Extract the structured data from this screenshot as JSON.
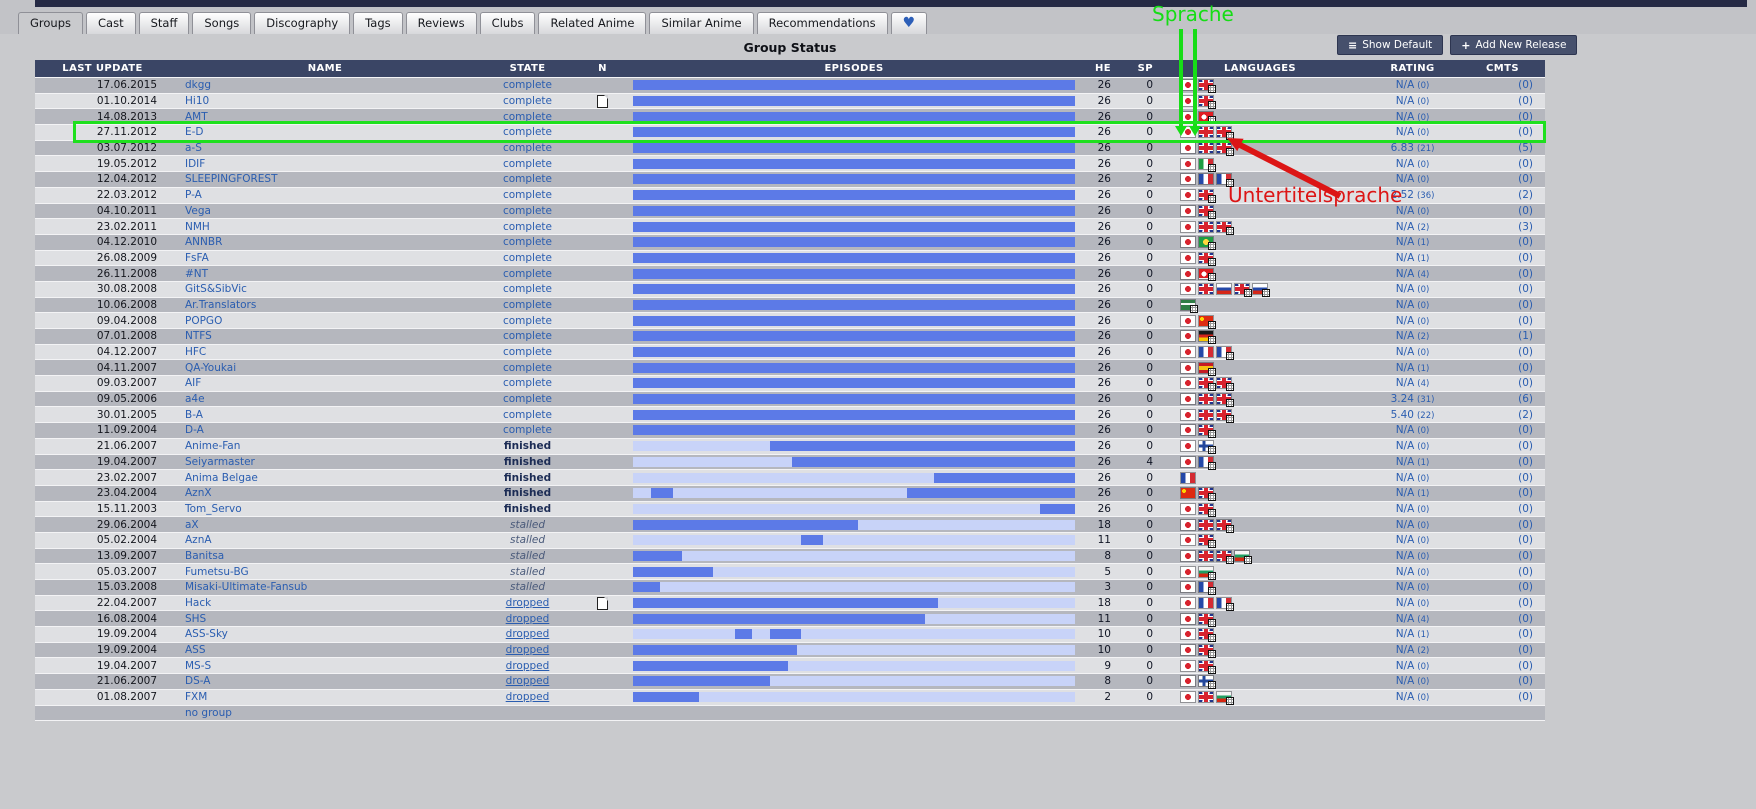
{
  "title": "Group Status",
  "tabs": [
    {
      "label": "Groups",
      "active": true
    },
    {
      "label": "Cast",
      "active": false
    },
    {
      "label": "Staff",
      "active": false
    },
    {
      "label": "Songs",
      "active": false
    },
    {
      "label": "Discography",
      "active": false
    },
    {
      "label": "Tags",
      "active": false
    },
    {
      "label": "Reviews",
      "active": false
    },
    {
      "label": "Clubs",
      "active": false
    },
    {
      "label": "Related Anime",
      "active": false
    },
    {
      "label": "Similar Anime",
      "active": false
    },
    {
      "label": "Recommendations",
      "active": false
    },
    {
      "label": "",
      "active": false,
      "icon": "heart"
    }
  ],
  "toolbar": {
    "show_default": "Show Default",
    "add_new_release": "Add New Release"
  },
  "columns": [
    "LAST UPDATE",
    "NAME",
    "STATE",
    "N",
    "EPISODES",
    "HE",
    "SP",
    "LANGUAGES",
    "RATING",
    "CMTS"
  ],
  "rows": [
    {
      "date": "17.06.2015",
      "name": "dkgg",
      "state": "complete",
      "note": false,
      "he": "26",
      "sp": "0",
      "flags": [
        "jp",
        "uk+b"
      ],
      "rating": "N/A",
      "votes": "(0)",
      "cmts": "(0)",
      "bar": {
        "base": "dark",
        "segs": []
      }
    },
    {
      "date": "01.10.2014",
      "name": "Hi10",
      "state": "complete",
      "note": true,
      "he": "26",
      "sp": "0",
      "flags": [
        "jp",
        "uk+b"
      ],
      "rating": "N/A",
      "votes": "(0)",
      "cmts": "(0)",
      "bar": {
        "base": "dark",
        "segs": []
      }
    },
    {
      "date": "14.08.2013",
      "name": "AMT",
      "state": "complete",
      "note": false,
      "he": "26",
      "sp": "0",
      "flags": [
        "jp",
        "tr+b"
      ],
      "rating": "N/A",
      "votes": "(0)",
      "cmts": "(0)",
      "bar": {
        "base": "dark",
        "segs": []
      }
    },
    {
      "date": "27.11.2012",
      "name": "E-D",
      "state": "complete",
      "note": false,
      "he": "26",
      "sp": "0",
      "flags": [
        "jp",
        "uk",
        "uk+b"
      ],
      "rating": "N/A",
      "votes": "(0)",
      "cmts": "(0)",
      "bar": {
        "base": "dark",
        "segs": []
      },
      "highlighted": true
    },
    {
      "date": "03.07.2012",
      "name": "a-S",
      "state": "complete",
      "note": false,
      "he": "26",
      "sp": "0",
      "flags": [
        "jp",
        "uk",
        "uk+b"
      ],
      "rating": "6.83",
      "votes": "(21)",
      "cmts": "(5)",
      "bar": {
        "base": "dark",
        "segs": []
      }
    },
    {
      "date": "19.05.2012",
      "name": "IDIF",
      "state": "complete",
      "note": false,
      "he": "26",
      "sp": "0",
      "flags": [
        "jp",
        "it+b"
      ],
      "rating": "N/A",
      "votes": "(0)",
      "cmts": "(0)",
      "bar": {
        "base": "dark",
        "segs": []
      }
    },
    {
      "date": "12.04.2012",
      "name": "SLEEPINGFOREST",
      "state": "complete",
      "note": false,
      "he": "26",
      "sp": "2",
      "flags": [
        "jp",
        "fr",
        "fr+b"
      ],
      "rating": "N/A",
      "votes": "(0)",
      "cmts": "(0)",
      "bar": {
        "base": "dark",
        "segs": []
      }
    },
    {
      "date": "22.03.2012",
      "name": "P-A",
      "state": "complete",
      "note": false,
      "he": "26",
      "sp": "0",
      "flags": [
        "jp",
        "uk+b"
      ],
      "rating": "2.52",
      "votes": "(36)",
      "cmts": "(2)",
      "bar": {
        "base": "dark",
        "segs": []
      }
    },
    {
      "date": "04.10.2011",
      "name": "Vega",
      "state": "complete",
      "note": false,
      "he": "26",
      "sp": "0",
      "flags": [
        "jp",
        "uk+b"
      ],
      "rating": "N/A",
      "votes": "(0)",
      "cmts": "(0)",
      "bar": {
        "base": "dark",
        "segs": []
      }
    },
    {
      "date": "23.02.2011",
      "name": "NMH",
      "state": "complete",
      "note": false,
      "he": "26",
      "sp": "0",
      "flags": [
        "jp",
        "uk",
        "uk+b"
      ],
      "rating": "N/A",
      "votes": "(2)",
      "cmts": "(3)",
      "bar": {
        "base": "dark",
        "segs": []
      }
    },
    {
      "date": "04.12.2010",
      "name": "ANNBR",
      "state": "complete",
      "note": false,
      "he": "26",
      "sp": "0",
      "flags": [
        "jp",
        "br+b"
      ],
      "rating": "N/A",
      "votes": "(1)",
      "cmts": "(0)",
      "bar": {
        "base": "dark",
        "segs": []
      }
    },
    {
      "date": "26.08.2009",
      "name": "FsFA",
      "state": "complete",
      "note": false,
      "he": "26",
      "sp": "0",
      "flags": [
        "jp",
        "uk+b"
      ],
      "rating": "N/A",
      "votes": "(1)",
      "cmts": "(0)",
      "bar": {
        "base": "dark",
        "segs": []
      }
    },
    {
      "date": "26.11.2008",
      "name": "#NT",
      "state": "complete",
      "note": false,
      "he": "26",
      "sp": "0",
      "flags": [
        "jp",
        "tr+b"
      ],
      "rating": "N/A",
      "votes": "(4)",
      "cmts": "(0)",
      "bar": {
        "base": "dark",
        "segs": []
      }
    },
    {
      "date": "30.08.2008",
      "name": "GitS&SibVic",
      "state": "complete",
      "note": false,
      "he": "26",
      "sp": "0",
      "flags": [
        "jp",
        "uk",
        "ru",
        "uk+b",
        "ru+b"
      ],
      "rating": "N/A",
      "votes": "(0)",
      "cmts": "(0)",
      "bar": {
        "base": "dark",
        "segs": []
      }
    },
    {
      "date": "10.06.2008",
      "name": "Ar.Translators",
      "state": "complete",
      "note": false,
      "he": "26",
      "sp": "0",
      "flags": [
        "sa+b"
      ],
      "rating": "N/A",
      "votes": "(0)",
      "cmts": "(0)",
      "bar": {
        "base": "dark",
        "segs": []
      }
    },
    {
      "date": "09.04.2008",
      "name": "POPGO",
      "state": "complete",
      "note": false,
      "he": "26",
      "sp": "0",
      "flags": [
        "jp",
        "cn+b"
      ],
      "rating": "N/A",
      "votes": "(0)",
      "cmts": "(0)",
      "bar": {
        "base": "dark",
        "segs": []
      }
    },
    {
      "date": "07.01.2008",
      "name": "NTFS",
      "state": "complete",
      "note": false,
      "he": "26",
      "sp": "0",
      "flags": [
        "jp",
        "de+b"
      ],
      "rating": "N/A",
      "votes": "(2)",
      "cmts": "(1)",
      "bar": {
        "base": "dark",
        "segs": []
      }
    },
    {
      "date": "04.12.2007",
      "name": "HFC",
      "state": "complete",
      "note": false,
      "he": "26",
      "sp": "0",
      "flags": [
        "jp",
        "fr",
        "fr+b"
      ],
      "rating": "N/A",
      "votes": "(0)",
      "cmts": "(0)",
      "bar": {
        "base": "dark",
        "segs": []
      }
    },
    {
      "date": "04.11.2007",
      "name": "QA-Youkai",
      "state": "complete",
      "note": false,
      "he": "26",
      "sp": "0",
      "flags": [
        "jp",
        "es+b"
      ],
      "rating": "N/A",
      "votes": "(1)",
      "cmts": "(0)",
      "bar": {
        "base": "dark",
        "segs": []
      }
    },
    {
      "date": "09.03.2007",
      "name": "AIF",
      "state": "complete",
      "note": false,
      "he": "26",
      "sp": "0",
      "flags": [
        "jp",
        "uk+b",
        "uk+b"
      ],
      "rating": "N/A",
      "votes": "(4)",
      "cmts": "(0)",
      "bar": {
        "base": "dark",
        "segs": []
      }
    },
    {
      "date": "09.05.2006",
      "name": "a4e",
      "state": "complete",
      "note": false,
      "he": "26",
      "sp": "0",
      "flags": [
        "jp",
        "uk",
        "uk+b"
      ],
      "rating": "3.24",
      "votes": "(31)",
      "cmts": "(6)",
      "bar": {
        "base": "dark",
        "segs": []
      }
    },
    {
      "date": "30.01.2005",
      "name": "B-A",
      "state": "complete",
      "note": false,
      "he": "26",
      "sp": "0",
      "flags": [
        "jp",
        "uk",
        "uk+b"
      ],
      "rating": "5.40",
      "votes": "(22)",
      "cmts": "(2)",
      "bar": {
        "base": "dark",
        "segs": []
      }
    },
    {
      "date": "11.09.2004",
      "name": "D-A",
      "state": "complete",
      "note": false,
      "he": "26",
      "sp": "0",
      "flags": [
        "jp",
        "uk+b"
      ],
      "rating": "N/A",
      "votes": "(0)",
      "cmts": "(0)",
      "bar": {
        "base": "dark",
        "segs": []
      }
    },
    {
      "date": "21.06.2007",
      "name": "Anime-Fan",
      "state": "finished",
      "note": false,
      "he": "26",
      "sp": "0",
      "flags": [
        "jp",
        "fi+b"
      ],
      "rating": "N/A",
      "votes": "(0)",
      "cmts": "(0)",
      "bar": {
        "base": "light",
        "segs": [
          [
            31,
            100
          ]
        ]
      }
    },
    {
      "date": "19.04.2007",
      "name": "Seiyarmaster",
      "state": "finished",
      "note": false,
      "he": "26",
      "sp": "4",
      "flags": [
        "jp",
        "fr+b"
      ],
      "rating": "N/A",
      "votes": "(1)",
      "cmts": "(0)",
      "bar": {
        "base": "light",
        "segs": [
          [
            36,
            100
          ]
        ]
      }
    },
    {
      "date": "23.02.2007",
      "name": "Anima Belgae",
      "state": "finished",
      "note": false,
      "he": "26",
      "sp": "0",
      "flags": [
        "fr"
      ],
      "rating": "N/A",
      "votes": "(0)",
      "cmts": "(0)",
      "bar": {
        "base": "light",
        "segs": [
          [
            68,
            100
          ]
        ]
      }
    },
    {
      "date": "23.04.2004",
      "name": "AznX",
      "state": "finished",
      "note": false,
      "he": "26",
      "sp": "0",
      "flags": [
        "cn",
        "uk+b"
      ],
      "rating": "N/A",
      "votes": "(1)",
      "cmts": "(0)",
      "bar": {
        "base": "light",
        "segs": [
          [
            4,
            9
          ],
          [
            62,
            100
          ]
        ]
      }
    },
    {
      "date": "15.11.2003",
      "name": "Tom_Servo",
      "state": "finished",
      "note": false,
      "he": "26",
      "sp": "0",
      "flags": [
        "jp",
        "uk+b"
      ],
      "rating": "N/A",
      "votes": "(0)",
      "cmts": "(0)",
      "bar": {
        "base": "light",
        "segs": [
          [
            92,
            100
          ]
        ]
      }
    },
    {
      "date": "29.06.2004",
      "name": "aX",
      "state": "stalled",
      "note": false,
      "he": "18",
      "sp": "0",
      "flags": [
        "jp",
        "uk",
        "uk+b"
      ],
      "rating": "N/A",
      "votes": "(0)",
      "cmts": "(0)",
      "bar": {
        "base": "light",
        "segs": [
          [
            0,
            51
          ]
        ]
      }
    },
    {
      "date": "05.02.2004",
      "name": "AznA",
      "state": "stalled",
      "note": false,
      "he": "11",
      "sp": "0",
      "flags": [
        "jp",
        "uk+b"
      ],
      "rating": "N/A",
      "votes": "(0)",
      "cmts": "(0)",
      "bar": {
        "base": "light",
        "segs": [
          [
            38,
            43
          ]
        ]
      }
    },
    {
      "date": "13.09.2007",
      "name": "Banitsa",
      "state": "stalled",
      "note": false,
      "he": "8",
      "sp": "0",
      "flags": [
        "jp",
        "uk",
        "uk+b",
        "bg+b"
      ],
      "rating": "N/A",
      "votes": "(0)",
      "cmts": "(0)",
      "bar": {
        "base": "light",
        "segs": [
          [
            0,
            11
          ]
        ]
      }
    },
    {
      "date": "05.03.2007",
      "name": "Fumetsu-BG",
      "state": "stalled",
      "note": false,
      "he": "5",
      "sp": "0",
      "flags": [
        "jp",
        "bg+b"
      ],
      "rating": "N/A",
      "votes": "(0)",
      "cmts": "(0)",
      "bar": {
        "base": "light",
        "segs": [
          [
            0,
            18
          ]
        ]
      }
    },
    {
      "date": "15.03.2008",
      "name": "Misaki-Ultimate-Fansub",
      "state": "stalled",
      "note": false,
      "he": "3",
      "sp": "0",
      "flags": [
        "jp",
        "fr+b"
      ],
      "rating": "N/A",
      "votes": "(0)",
      "cmts": "(0)",
      "bar": {
        "base": "light",
        "segs": [
          [
            0,
            6
          ]
        ]
      }
    },
    {
      "date": "22.04.2007",
      "name": "Hack",
      "state": "dropped",
      "note": true,
      "he": "18",
      "sp": "0",
      "flags": [
        "jp",
        "fr",
        "fr+b"
      ],
      "rating": "N/A",
      "votes": "(0)",
      "cmts": "(0)",
      "bar": {
        "base": "light",
        "segs": [
          [
            0,
            69
          ]
        ]
      }
    },
    {
      "date": "16.08.2004",
      "name": "SHS",
      "state": "dropped",
      "note": false,
      "he": "11",
      "sp": "0",
      "flags": [
        "jp",
        "uk+b"
      ],
      "rating": "N/A",
      "votes": "(4)",
      "cmts": "(0)",
      "bar": {
        "base": "light",
        "segs": [
          [
            0,
            66
          ]
        ]
      }
    },
    {
      "date": "19.09.2004",
      "name": "ASS-Sky",
      "state": "dropped",
      "note": false,
      "he": "10",
      "sp": "0",
      "flags": [
        "jp",
        "uk+b"
      ],
      "rating": "N/A",
      "votes": "(1)",
      "cmts": "(0)",
      "bar": {
        "base": "light",
        "segs": [
          [
            23,
            27
          ],
          [
            31,
            38
          ]
        ]
      }
    },
    {
      "date": "19.09.2004",
      "name": "ASS",
      "state": "dropped",
      "note": false,
      "he": "10",
      "sp": "0",
      "flags": [
        "jp",
        "uk+b"
      ],
      "rating": "N/A",
      "votes": "(2)",
      "cmts": "(0)",
      "bar": {
        "base": "light",
        "segs": [
          [
            0,
            37
          ]
        ]
      }
    },
    {
      "date": "19.04.2007",
      "name": "MS-S",
      "state": "dropped",
      "note": false,
      "he": "9",
      "sp": "0",
      "flags": [
        "jp",
        "uk+b"
      ],
      "rating": "N/A",
      "votes": "(0)",
      "cmts": "(0)",
      "bar": {
        "base": "light",
        "segs": [
          [
            0,
            35
          ]
        ]
      }
    },
    {
      "date": "21.06.2007",
      "name": "DS-A",
      "state": "dropped",
      "note": false,
      "he": "8",
      "sp": "0",
      "flags": [
        "jp",
        "fi+b"
      ],
      "rating": "N/A",
      "votes": "(0)",
      "cmts": "(0)",
      "bar": {
        "base": "light",
        "segs": [
          [
            0,
            31
          ]
        ]
      }
    },
    {
      "date": "01.08.2007",
      "name": "FXM",
      "state": "dropped",
      "note": false,
      "he": "2",
      "sp": "0",
      "flags": [
        "jp",
        "uk",
        "bg+b"
      ],
      "rating": "N/A",
      "votes": "(0)",
      "cmts": "(0)",
      "bar": {
        "base": "light",
        "segs": [
          [
            0,
            15
          ]
        ]
      }
    },
    {
      "date": "",
      "name": "no group",
      "state": "",
      "note": false,
      "he": "",
      "sp": "",
      "flags": [],
      "rating": "",
      "votes": "",
      "cmts": "",
      "bar": {
        "base": "none",
        "segs": []
      }
    }
  ],
  "annotations": {
    "audio_label": "Sprache",
    "subtitle_label": "Untertitelsprache"
  },
  "colors": {
    "header_bg": "#3a4565",
    "bar_dark": "#5c7ae7",
    "bar_light": "#c8d3f8",
    "link_blue": "#2a5db0",
    "annotation_green": "#17dd17",
    "annotation_red": "#dc1515"
  }
}
